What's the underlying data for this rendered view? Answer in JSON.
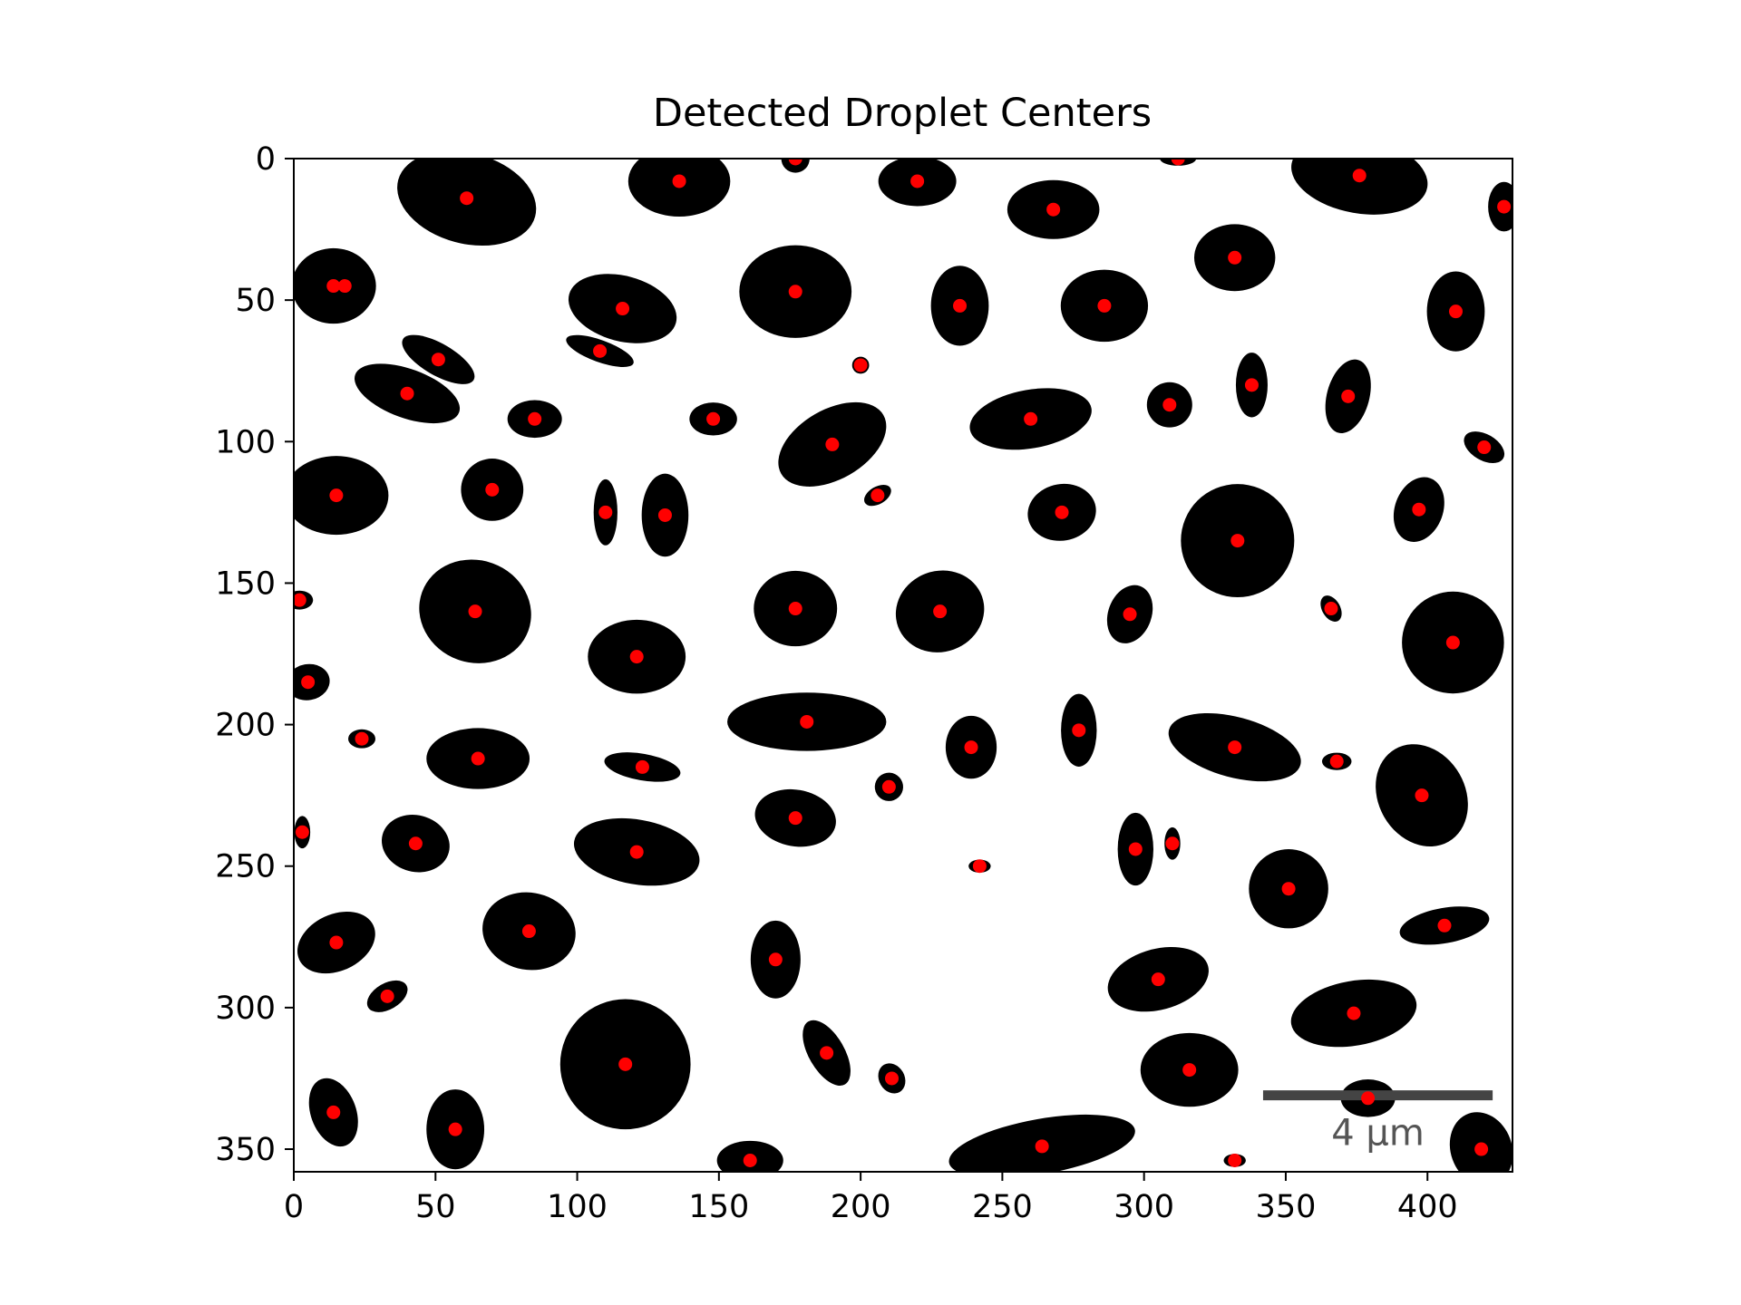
{
  "chart_data": {
    "type": "scatter",
    "title": "Detected Droplet Centers",
    "xlabel": "",
    "ylabel": "",
    "xlim": [
      0,
      430
    ],
    "ylim": [
      358,
      0
    ],
    "y_inverted": true,
    "grid": false,
    "legend": "none",
    "x_ticks": [
      0,
      50,
      100,
      150,
      200,
      250,
      300,
      350,
      400
    ],
    "y_ticks": [
      0,
      50,
      100,
      150,
      200,
      250,
      300,
      350
    ],
    "marker_color": "#ff0000",
    "blob_color": "#000000",
    "scale_bar": {
      "label": "4 µm",
      "x_start": 342,
      "x_end": 423,
      "y": 331,
      "color": "#444444"
    },
    "series": [
      {
        "x": [
          18,
          61,
          136,
          177,
          220,
          268,
          312,
          376,
          427,
          14,
          116,
          177,
          235,
          286,
          332,
          410,
          51,
          40,
          108,
          85,
          148,
          200,
          190,
          260,
          309,
          338,
          372,
          420,
          15,
          70,
          110,
          131,
          206,
          271,
          333,
          397,
          2,
          64,
          177,
          228,
          295,
          366,
          409,
          5,
          121,
          24,
          65,
          123,
          181,
          239,
          277,
          332,
          368,
          398,
          3,
          43,
          121,
          177,
          210,
          242,
          297,
          310,
          351,
          406,
          15,
          83,
          170,
          33,
          117,
          188,
          305,
          374,
          14,
          57,
          211,
          161,
          264,
          316,
          332,
          379,
          419
        ],
        "y": [
          45,
          14,
          8,
          0,
          8,
          18,
          0,
          6,
          17,
          45,
          53,
          47,
          52,
          52,
          35,
          54,
          71,
          83,
          68,
          92,
          92,
          73,
          101,
          92,
          87,
          80,
          84,
          102,
          119,
          117,
          125,
          126,
          119,
          125,
          135,
          124,
          156,
          160,
          159,
          160,
          161,
          159,
          171,
          185,
          176,
          205,
          212,
          215,
          199,
          208,
          202,
          208,
          213,
          225,
          238,
          242,
          245,
          233,
          222,
          250,
          244,
          242,
          258,
          271,
          277,
          273,
          283,
          296,
          320,
          316,
          290,
          302,
          337,
          343,
          325,
          354,
          349,
          322,
          354,
          332,
          350
        ],
        "blob_r": [
          11,
          20,
          15,
          5,
          11,
          13,
          4,
          18,
          7,
          14,
          15,
          18,
          12,
          14,
          13,
          12,
          9,
          13,
          7,
          8,
          7,
          3,
          16,
          15,
          8,
          8,
          10,
          6,
          16,
          11,
          7,
          11,
          4,
          11,
          20,
          10,
          4,
          19,
          14,
          15,
          9,
          4,
          18,
          7,
          15,
          4,
          14,
          8,
          17,
          10,
          9,
          16,
          4,
          17,
          4,
          11,
          16,
          12,
          5,
          3,
          9,
          4,
          14,
          10,
          12,
          15,
          11,
          6,
          23,
          9,
          14,
          16,
          10,
          12,
          5,
          9,
          18,
          15,
          3,
          8,
          12
        ],
        "blob_e": [
          1.0,
          1.25,
          1.2,
          1.0,
          1.25,
          1.25,
          1.6,
          1.35,
          0.8,
          1.05,
          1.3,
          1.1,
          0.85,
          1.1,
          1.1,
          0.85,
          1.6,
          1.5,
          1.8,
          1.2,
          1.2,
          1.0,
          1.3,
          1.45,
          1.0,
          0.7,
          0.75,
          1.3,
          1.15,
          1.0,
          0.6,
          0.75,
          1.3,
          1.1,
          1.0,
          0.85,
          1.2,
          1.05,
          1.05,
          1.05,
          0.85,
          0.8,
          1.0,
          1.1,
          1.15,
          1.2,
          1.3,
          1.7,
          1.65,
          0.9,
          0.7,
          1.5,
          1.3,
          0.9,
          0.7,
          1.1,
          1.4,
          1.2,
          1.0,
          1.3,
          0.7,
          0.7,
          1.0,
          1.6,
          1.2,
          1.1,
          0.8,
          1.3,
          1.0,
          0.7,
          1.3,
          1.4,
          0.8,
          0.85,
          0.9,
          1.3,
          1.85,
          1.15,
          1.3,
          1.2,
          0.9
        ],
        "blob_rot": [
          0,
          15,
          0,
          0,
          0,
          0,
          0,
          10,
          0,
          0,
          15,
          0,
          0,
          0,
          0,
          0,
          30,
          20,
          20,
          0,
          0,
          0,
          -30,
          -10,
          0,
          0,
          15,
          30,
          0,
          0,
          0,
          0,
          -30,
          -10,
          0,
          20,
          0,
          20,
          0,
          -20,
          20,
          -30,
          0,
          -10,
          0,
          0,
          0,
          10,
          0,
          0,
          0,
          15,
          0,
          -30,
          0,
          15,
          10,
          10,
          -20,
          0,
          0,
          0,
          0,
          -10,
          -25,
          10,
          0,
          -30,
          0,
          -30,
          -15,
          -10,
          -20,
          0,
          -30,
          0,
          -10,
          0,
          0,
          0,
          -20
        ]
      }
    ]
  }
}
